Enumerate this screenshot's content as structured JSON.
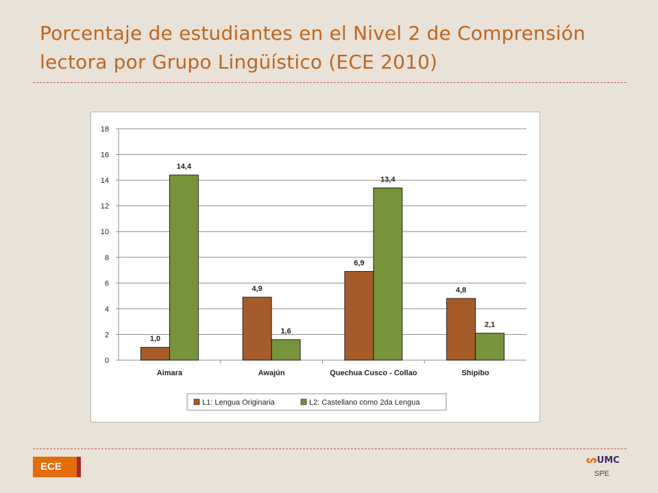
{
  "slide": {
    "title": "Porcentaje de estudiantes en el Nivel 2 de Comprensión lectora por Grupo Lingüístico (ECE 2010)",
    "badge": "ECE",
    "logo_text": "UMC",
    "logo_sub": "SPE"
  },
  "colors": {
    "title": "#c0651e",
    "l1": "#a65c2a",
    "l2": "#77933c",
    "divider": "#c0504d",
    "badge": "#e46c0a",
    "badge_edge": "#a52a2a"
  },
  "chart_data": {
    "type": "bar",
    "title": "",
    "xlabel": "",
    "ylabel": "",
    "categories": [
      "Aimara",
      "Awajún",
      "Quechua Cusco - Collao",
      "Shipibo"
    ],
    "series": [
      {
        "name": "L1: Lengua Originaria",
        "values": [
          1.0,
          4.9,
          6.9,
          4.8
        ],
        "labels": [
          "1,0",
          "4,9",
          "6,9",
          "4,8"
        ]
      },
      {
        "name": "L2: Castellano como 2da Lengua",
        "values": [
          14.4,
          1.6,
          13.4,
          2.1
        ],
        "labels": [
          "14,4",
          "1,6",
          "13,4",
          "2,1"
        ]
      }
    ],
    "ylim": [
      0,
      18
    ],
    "yticks": [
      0,
      2,
      4,
      6,
      8,
      10,
      12,
      14,
      16,
      18
    ],
    "grid": true,
    "legend_position": "bottom"
  }
}
